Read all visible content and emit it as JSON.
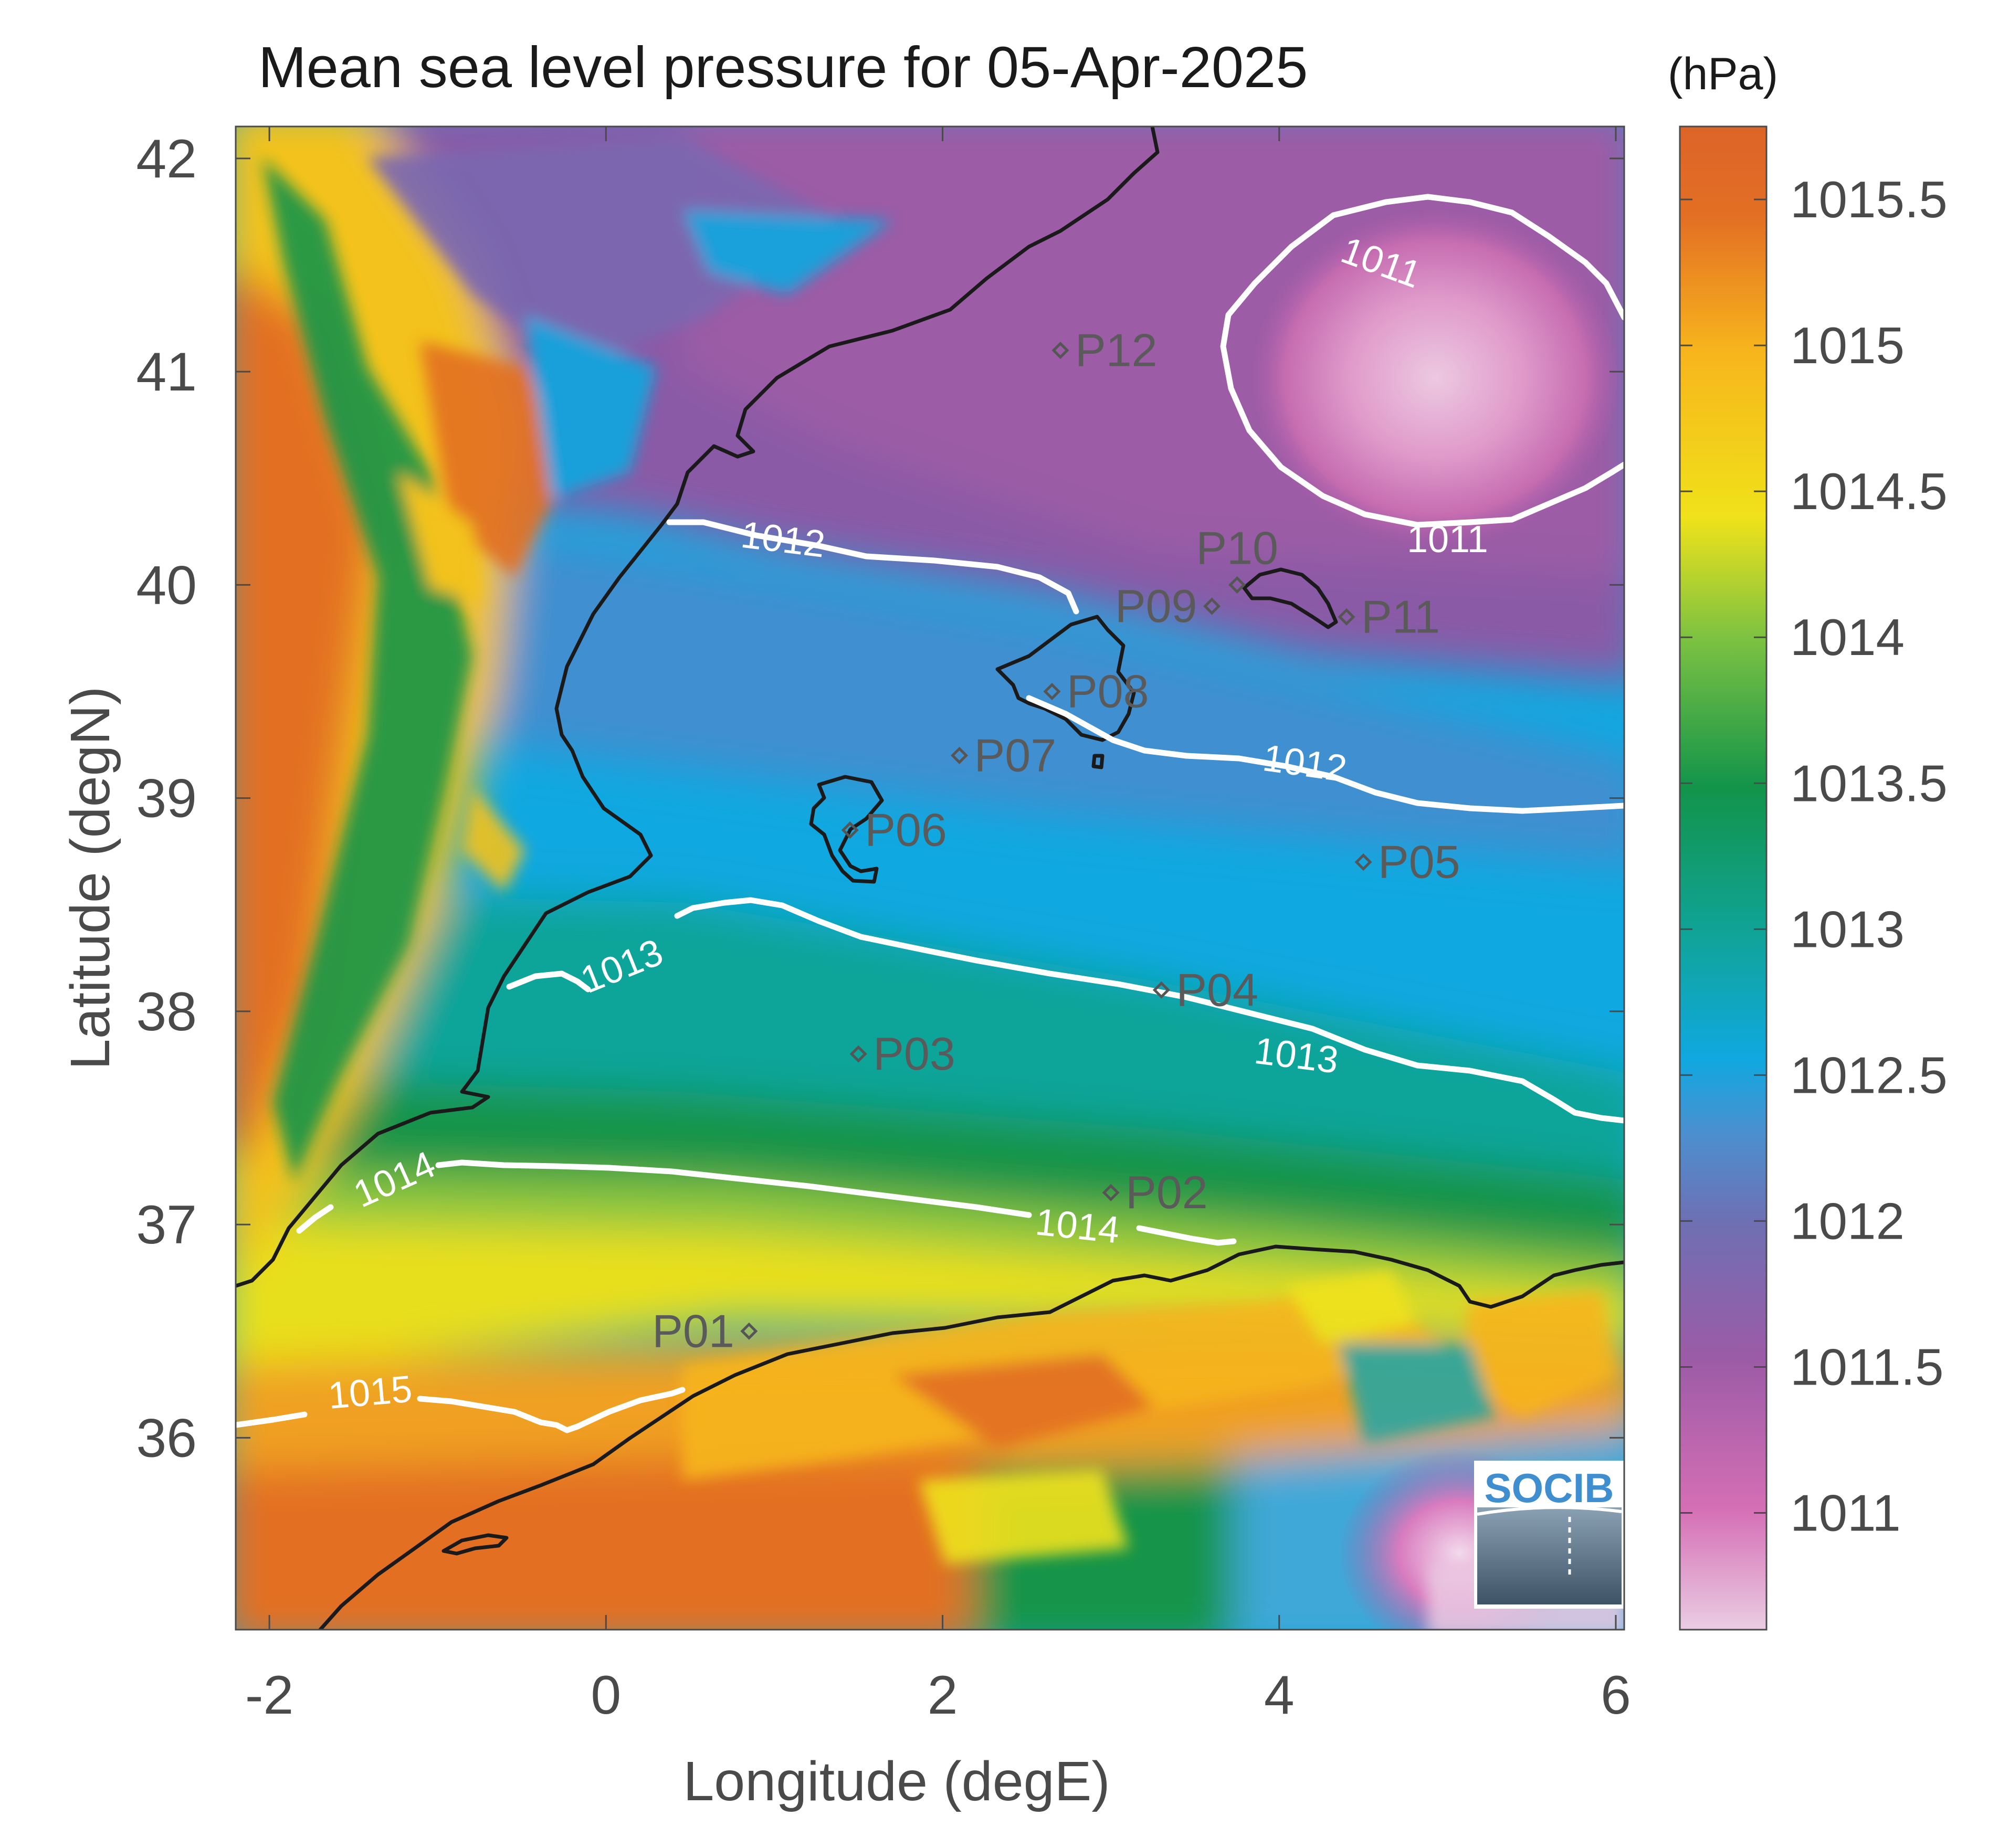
{
  "title": "Mean sea level pressure for 05-Apr-2025",
  "units_label": "(hPa)",
  "x_axis": {
    "label": "Longitude (degE)",
    "ticks": [
      {
        "value": -2,
        "label": "-2"
      },
      {
        "value": 0,
        "label": "0"
      },
      {
        "value": 2,
        "label": "2"
      },
      {
        "value": 4,
        "label": "4"
      },
      {
        "value": 6,
        "label": "6"
      }
    ],
    "range": [
      -2.2,
      6.05
    ]
  },
  "y_axis": {
    "label": "Latitude (degN)",
    "ticks": [
      {
        "value": 36,
        "label": "36"
      },
      {
        "value": 37,
        "label": "37"
      },
      {
        "value": 38,
        "label": "38"
      },
      {
        "value": 39,
        "label": "39"
      },
      {
        "value": 40,
        "label": "40"
      },
      {
        "value": 41,
        "label": "41"
      },
      {
        "value": 42,
        "label": "42"
      }
    ],
    "range": [
      35.1,
      42.15
    ]
  },
  "colorbar": {
    "range": [
      1010.6,
      1015.75
    ],
    "ticks": [
      {
        "value": 1011,
        "label": "1011"
      },
      {
        "value": 1011.5,
        "label": "1011.5"
      },
      {
        "value": 1012,
        "label": "1012"
      },
      {
        "value": 1012.5,
        "label": "1012.5"
      },
      {
        "value": 1013,
        "label": "1013"
      },
      {
        "value": 1013.5,
        "label": "1013.5"
      },
      {
        "value": 1014,
        "label": "1014"
      },
      {
        "value": 1014.5,
        "label": "1014.5"
      },
      {
        "value": 1015,
        "label": "1015"
      },
      {
        "value": 1015.5,
        "label": "1015.5"
      }
    ],
    "colors": {
      "1010.6": "#e8c8e0",
      "1011.0": "#d56fb5",
      "1011.5": "#9c5ba6",
      "1012.0": "#5c7bc0",
      "1012.5": "#10a8e0",
      "1013.0": "#10a49a",
      "1013.5": "#12944a",
      "1014.0": "#7dc242",
      "1014.5": "#f0e21a",
      "1015.0": "#f7b51c",
      "1015.5": "#e36f24",
      "1015.75": "#dc6428"
    }
  },
  "contour_labels": [
    {
      "text": "1011",
      "lon": 4.6,
      "lat": 41.5,
      "angle": 20
    },
    {
      "text": "1011",
      "lon": 5.0,
      "lat": 40.2,
      "angle": 0
    },
    {
      "text": "1012",
      "lon": 1.05,
      "lat": 40.2,
      "angle": 7
    },
    {
      "text": "1012",
      "lon": 4.15,
      "lat": 39.15,
      "angle": 8
    },
    {
      "text": "1013",
      "lon": 0.1,
      "lat": 38.2,
      "angle": -22
    },
    {
      "text": "1013",
      "lon": 4.1,
      "lat": 37.78,
      "angle": 7
    },
    {
      "text": "1014",
      "lon": -1.25,
      "lat": 37.2,
      "angle": -24
    },
    {
      "text": "1014",
      "lon": 2.8,
      "lat": 36.98,
      "angle": 6
    },
    {
      "text": "1015",
      "lon": -1.4,
      "lat": 36.2,
      "angle": -5
    }
  ],
  "points": [
    {
      "id": "P01",
      "lon": 0.85,
      "lat": 36.5,
      "label_side": "left"
    },
    {
      "id": "P02",
      "lon": 3.0,
      "lat": 37.15,
      "label_side": "right"
    },
    {
      "id": "P03",
      "lon": 1.5,
      "lat": 37.8,
      "label_side": "right"
    },
    {
      "id": "P04",
      "lon": 3.3,
      "lat": 38.1,
      "label_side": "right"
    },
    {
      "id": "P05",
      "lon": 4.5,
      "lat": 38.7,
      "label_side": "right"
    },
    {
      "id": "P06",
      "lon": 1.45,
      "lat": 38.85,
      "label_side": "right"
    },
    {
      "id": "P07",
      "lon": 2.1,
      "lat": 39.2,
      "label_side": "right"
    },
    {
      "id": "P08",
      "lon": 2.65,
      "lat": 39.5,
      "label_side": "right"
    },
    {
      "id": "P09",
      "lon": 3.6,
      "lat": 39.9,
      "label_side": "left"
    },
    {
      "id": "P10",
      "lon": 3.75,
      "lat": 40.0,
      "label_side": "above"
    },
    {
      "id": "P11",
      "lon": 4.4,
      "lat": 39.85,
      "label_side": "right"
    },
    {
      "id": "P12",
      "lon": 2.7,
      "lat": 41.1,
      "label_side": "right"
    }
  ],
  "logo": {
    "text": "SOCIB"
  }
}
